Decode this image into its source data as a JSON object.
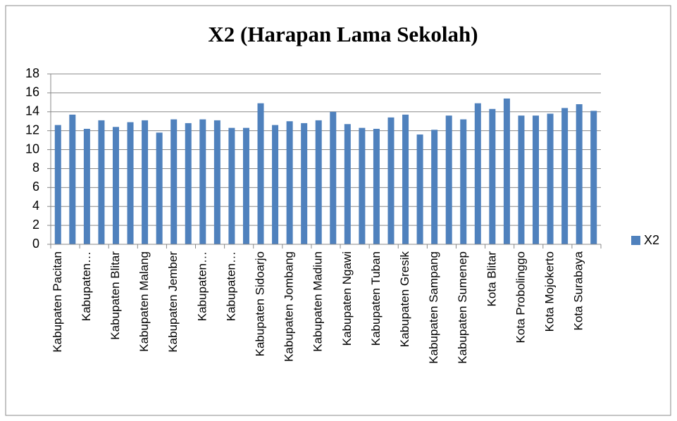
{
  "chart_data": {
    "type": "bar",
    "title": "X2 (Harapan Lama Sekolah)",
    "categories": [
      "Kabupaten Pacitan",
      null,
      "Kabupaten…",
      null,
      "Kabupaten Blitar",
      null,
      "Kabupaten Malang",
      null,
      "Kabupaten Jember",
      null,
      "Kabupaten…",
      null,
      "Kabupaten…",
      null,
      "Kabupaten Sidoarjo",
      null,
      "Kabupaten Jombang",
      null,
      "Kabupaten Madiun",
      null,
      "Kabupaten Ngawi",
      null,
      "Kabupaten Tuban",
      null,
      "Kabupaten Gresik",
      null,
      "Kabupaten Sampang",
      null,
      "Kabupaten Sumenep",
      null,
      "Kota Blitar",
      null,
      "Kota Probolinggo",
      null,
      "Kota Mojokerto",
      null,
      "Kota Surabaya",
      null
    ],
    "series": [
      {
        "name": "X2",
        "color": "#4f81bd",
        "values": [
          12.6,
          13.7,
          12.2,
          13.1,
          12.4,
          12.9,
          13.1,
          11.8,
          13.2,
          12.8,
          13.2,
          13.1,
          12.3,
          12.3,
          14.9,
          12.6,
          13.0,
          12.8,
          13.1,
          14.0,
          12.7,
          12.3,
          12.2,
          13.4,
          13.7,
          11.6,
          12.1,
          13.6,
          13.2,
          14.9,
          14.3,
          15.4,
          13.6,
          13.6,
          13.8,
          14.4,
          14.8,
          14.1
        ]
      }
    ],
    "ylim": [
      0,
      18
    ],
    "yticks": [
      0,
      2,
      4,
      6,
      8,
      10,
      12,
      14,
      16,
      18
    ],
    "grid": true,
    "legend": "right"
  }
}
